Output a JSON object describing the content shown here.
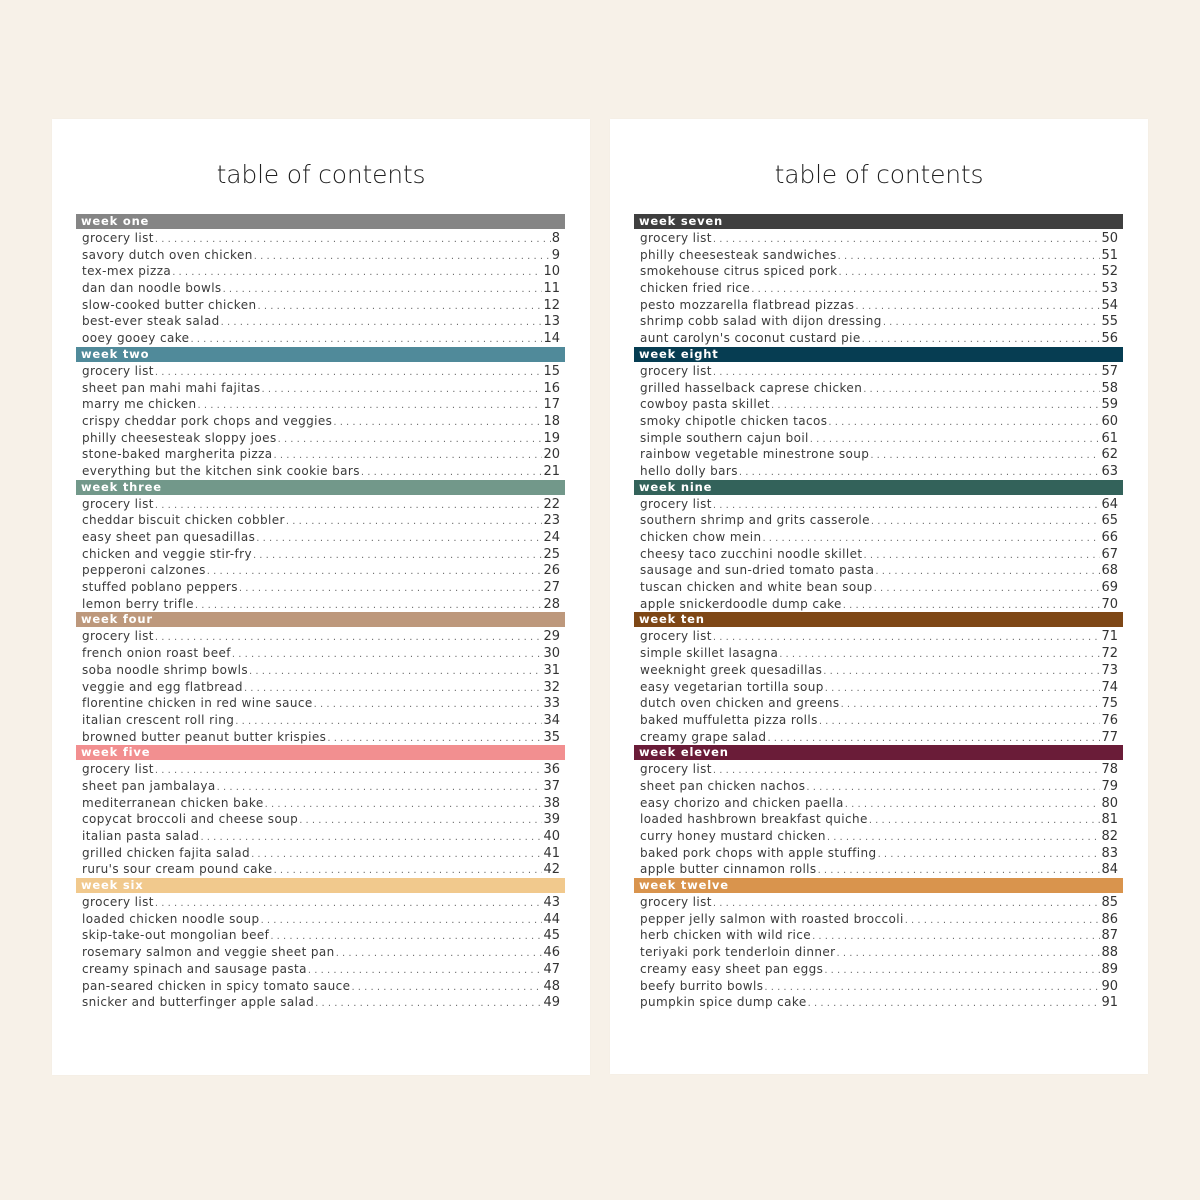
{
  "background_color": "#f7f1e8",
  "pages": [
    {
      "title": "table of contents",
      "weeks": [
        {
          "label": "week one",
          "color": "#858585",
          "items": [
            {
              "title": "grocery list",
              "page": "8"
            },
            {
              "title": "savory dutch oven chicken",
              "page": "9"
            },
            {
              "title": "tex-mex pizza",
              "page": "10"
            },
            {
              "title": "dan dan noodle bowls",
              "page": "11"
            },
            {
              "title": "slow-cooked butter chicken",
              "page": "12"
            },
            {
              "title": "best-ever steak salad",
              "page": "13"
            },
            {
              "title": "ooey gooey cake",
              "page": "14"
            }
          ]
        },
        {
          "label": "week two",
          "color": "#508a9a",
          "items": [
            {
              "title": "grocery list",
              "page": "15"
            },
            {
              "title": "sheet pan mahi mahi fajitas",
              "page": "16"
            },
            {
              "title": "marry me chicken",
              "page": "17"
            },
            {
              "title": "crispy cheddar pork chops and veggies",
              "page": "18"
            },
            {
              "title": "philly cheesesteak sloppy joes",
              "page": "19"
            },
            {
              "title": "stone-baked margherita pizza",
              "page": "20"
            },
            {
              "title": "everything but the kitchen sink cookie bars",
              "page": "21"
            }
          ]
        },
        {
          "label": "week three",
          "color": "#72988a",
          "items": [
            {
              "title": "grocery list",
              "page": "22"
            },
            {
              "title": "cheddar biscuit chicken cobbler",
              "page": "23"
            },
            {
              "title": "easy sheet pan quesadillas",
              "page": "24"
            },
            {
              "title": "chicken and veggie stir-fry",
              "page": "25"
            },
            {
              "title": "pepperoni calzones",
              "page": "26"
            },
            {
              "title": "stuffed poblano peppers",
              "page": "27"
            },
            {
              "title": "lemon berry trifle",
              "page": "28"
            }
          ]
        },
        {
          "label": "week four",
          "color": "#bd987c",
          "items": [
            {
              "title": "grocery list",
              "page": "29"
            },
            {
              "title": "french onion roast beef",
              "page": "30"
            },
            {
              "title": "soba noodle shrimp bowls",
              "page": "31"
            },
            {
              "title": "veggie and egg flatbread",
              "page": "32"
            },
            {
              "title": "florentine chicken in red wine sauce",
              "page": "33"
            },
            {
              "title": "italian crescent roll ring",
              "page": "34"
            },
            {
              "title": "browned butter peanut butter krispies",
              "page": "35"
            }
          ]
        },
        {
          "label": "week five",
          "color": "#f28f90",
          "items": [
            {
              "title": "grocery list",
              "page": "36"
            },
            {
              "title": "sheet pan jambalaya",
              "page": "37"
            },
            {
              "title": "mediterranean chicken bake",
              "page": "38"
            },
            {
              "title": "copycat broccoli and cheese soup",
              "page": "39"
            },
            {
              "title": "italian pasta salad",
              "page": "40"
            },
            {
              "title": "grilled chicken fajita salad",
              "page": "41"
            },
            {
              "title": "ruru's sour cream pound cake",
              "page": "42"
            }
          ]
        },
        {
          "label": "week six",
          "color": "#f1c98d",
          "items": [
            {
              "title": "grocery list",
              "page": "43"
            },
            {
              "title": "loaded chicken noodle soup",
              "page": "44"
            },
            {
              "title": "skip-take-out mongolian beef",
              "page": "45"
            },
            {
              "title": "rosemary salmon and veggie sheet pan",
              "page": "46"
            },
            {
              "title": "creamy spinach and sausage pasta",
              "page": "47"
            },
            {
              "title": "pan-seared chicken in spicy tomato sauce",
              "page": "48"
            },
            {
              "title": "snicker and butterfinger apple salad",
              "page": "49"
            }
          ]
        }
      ]
    },
    {
      "title": "table of contents",
      "weeks": [
        {
          "label": "week seven",
          "color": "#3f3f3f",
          "items": [
            {
              "title": "grocery list",
              "page": "50"
            },
            {
              "title": "philly cheesesteak sandwiches",
              "page": "51"
            },
            {
              "title": "smokehouse citrus spiced pork",
              "page": "52"
            },
            {
              "title": "chicken fried rice",
              "page": "53"
            },
            {
              "title": "pesto mozzarella flatbread pizzas",
              "page": "54"
            },
            {
              "title": "shrimp cobb salad with dijon dressing",
              "page": "55"
            },
            {
              "title": "aunt carolyn's coconut custard pie",
              "page": "56"
            }
          ]
        },
        {
          "label": "week eight",
          "color": "#063d52",
          "items": [
            {
              "title": "grocery list",
              "page": "57"
            },
            {
              "title": "grilled hasselback caprese chicken",
              "page": "58"
            },
            {
              "title": "cowboy pasta skillet",
              "page": "59"
            },
            {
              "title": "smoky chipotle chicken tacos",
              "page": "60"
            },
            {
              "title": "simple southern cajun boil",
              "page": "61"
            },
            {
              "title": "rainbow vegetable minestrone soup",
              "page": "62"
            },
            {
              "title": "hello dolly bars",
              "page": "63"
            }
          ]
        },
        {
          "label": "week nine",
          "color": "#33625a",
          "items": [
            {
              "title": "grocery list",
              "page": "64"
            },
            {
              "title": "southern shrimp and grits casserole",
              "page": "65"
            },
            {
              "title": "chicken chow mein",
              "page": "66"
            },
            {
              "title": "cheesy taco zucchini noodle skillet",
              "page": "67"
            },
            {
              "title": "sausage and sun-dried tomato pasta",
              "page": "68"
            },
            {
              "title": "tuscan chicken and white bean soup",
              "page": "69"
            },
            {
              "title": "apple snickerdoodle dump cake",
              "page": "70"
            }
          ]
        },
        {
          "label": "week ten",
          "color": "#7e4716",
          "items": [
            {
              "title": "grocery list",
              "page": "71"
            },
            {
              "title": "simple skillet lasagna",
              "page": "72"
            },
            {
              "title": "weeknight greek quesadillas",
              "page": "73"
            },
            {
              "title": "easy vegetarian tortilla soup",
              "page": "74"
            },
            {
              "title": "dutch oven chicken and greens",
              "page": "75"
            },
            {
              "title": "baked muffuletta pizza rolls",
              "page": "76"
            },
            {
              "title": "creamy grape salad",
              "page": "77"
            }
          ]
        },
        {
          "label": "week eleven",
          "color": "#6a1c38",
          "items": [
            {
              "title": "grocery list",
              "page": "78"
            },
            {
              "title": "sheet pan chicken nachos",
              "page": "79"
            },
            {
              "title": "easy chorizo and chicken paella",
              "page": "80"
            },
            {
              "title": "loaded hashbrown breakfast quiche",
              "page": "81"
            },
            {
              "title": "curry honey mustard chicken",
              "page": "82"
            },
            {
              "title": "baked pork chops with apple stuffing",
              "page": "83"
            },
            {
              "title": "apple butter cinnamon rolls",
              "page": "84"
            }
          ]
        },
        {
          "label": "week twelve",
          "color": "#d9944d",
          "items": [
            {
              "title": "grocery list",
              "page": "85"
            },
            {
              "title": "pepper jelly salmon with roasted broccoli",
              "page": "86"
            },
            {
              "title": "herb chicken with wild rice",
              "page": "87"
            },
            {
              "title": "teriyaki pork tenderloin dinner",
              "page": "88"
            },
            {
              "title": "creamy easy sheet pan eggs",
              "page": "89"
            },
            {
              "title": "beefy burrito bowls",
              "page": "90"
            },
            {
              "title": "pumpkin spice dump cake",
              "page": "91"
            }
          ]
        }
      ]
    }
  ]
}
